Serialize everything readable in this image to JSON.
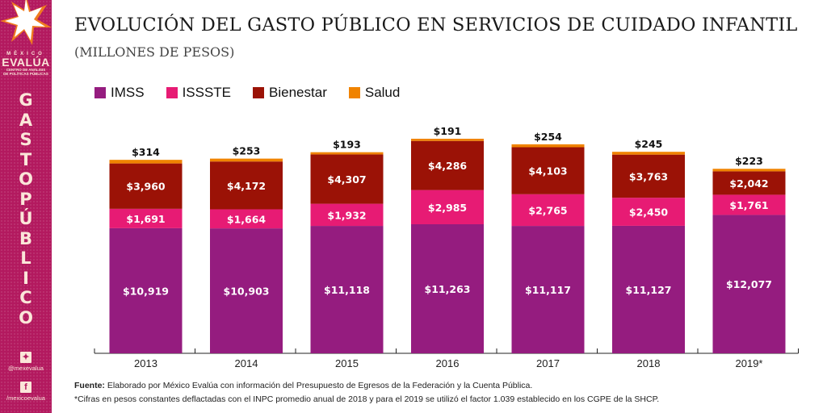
{
  "sidebar": {
    "brand_top": "MÉXICO",
    "brand_name": "EVALÚA",
    "brand_sub1": "CENTRO DE ANÁLISIS",
    "brand_sub2": "DE POLÍTICAS PÚBLICAS",
    "vertical_letters": [
      "G",
      "A",
      "S",
      "T",
      "O",
      "P",
      "Ú",
      "B",
      "L",
      "I",
      "C",
      "O"
    ],
    "twitter_icon": "twitter-bird",
    "twitter_handle": "@mexevalua",
    "facebook_icon": "f",
    "facebook_handle": "/mexicoevalua"
  },
  "header": {
    "title": "EVOLUCIÓN DEL GASTO PÚBLICO EN SERVICIOS DE CUIDADO INFANTIL",
    "subtitle": "(MILLONES DE PESOS)"
  },
  "footer": {
    "source_label": "Fuente:",
    "source_text": " Elaborado por México Evalúa con información del Presupuesto de Egresos de la Federación y la Cuenta Pública.",
    "note": "*Cifras en pesos constantes deflactadas con el INPC promedio anual de 2018 y para el 2019 se utilizó el factor 1.039 establecido en los CGPE de la SHCP."
  },
  "chart_data": {
    "type": "bar",
    "stacked": true,
    "title": "EVOLUCIÓN DEL GASTO PÚBLICO EN SERVICIOS DE CUIDADO INFANTIL",
    "subtitle": "(MILLONES DE PESOS)",
    "xlabel": "",
    "ylabel": "",
    "categories": [
      "2013",
      "2014",
      "2015",
      "2016",
      "2017",
      "2018",
      "2019*"
    ],
    "legend_position": "top-left",
    "grid": false,
    "ylim": [
      0,
      19000
    ],
    "series": [
      {
        "name": "IMSS",
        "color": "#951c7f",
        "values": [
          10919,
          10903,
          11118,
          11263,
          11117,
          11127,
          12077
        ],
        "labels": [
          "$10,919",
          "$10,903",
          "$11,118",
          "$11,263",
          "$11,117",
          "$11,127",
          "$12,077"
        ]
      },
      {
        "name": "ISSSTE",
        "color": "#e71b74",
        "values": [
          1691,
          1664,
          1932,
          2985,
          2765,
          2450,
          1761
        ],
        "labels": [
          "$1,691",
          "$1,664",
          "$1,932",
          "$2,985",
          "$2,765",
          "$2,450",
          "$1,761"
        ]
      },
      {
        "name": "Bienestar",
        "color": "#9b1206",
        "values": [
          3960,
          4172,
          4307,
          4286,
          4103,
          3763,
          2042
        ],
        "labels": [
          "$3,960",
          "$4,172",
          "$4,307",
          "$4,286",
          "$4,103",
          "$3,763",
          "$2,042"
        ]
      },
      {
        "name": "Salud",
        "color": "#f08300",
        "values": [
          314,
          253,
          193,
          191,
          254,
          245,
          223
        ],
        "labels": [
          "$314",
          "$253",
          "$193",
          "$191",
          "$254",
          "$245",
          "$223"
        ]
      }
    ]
  }
}
